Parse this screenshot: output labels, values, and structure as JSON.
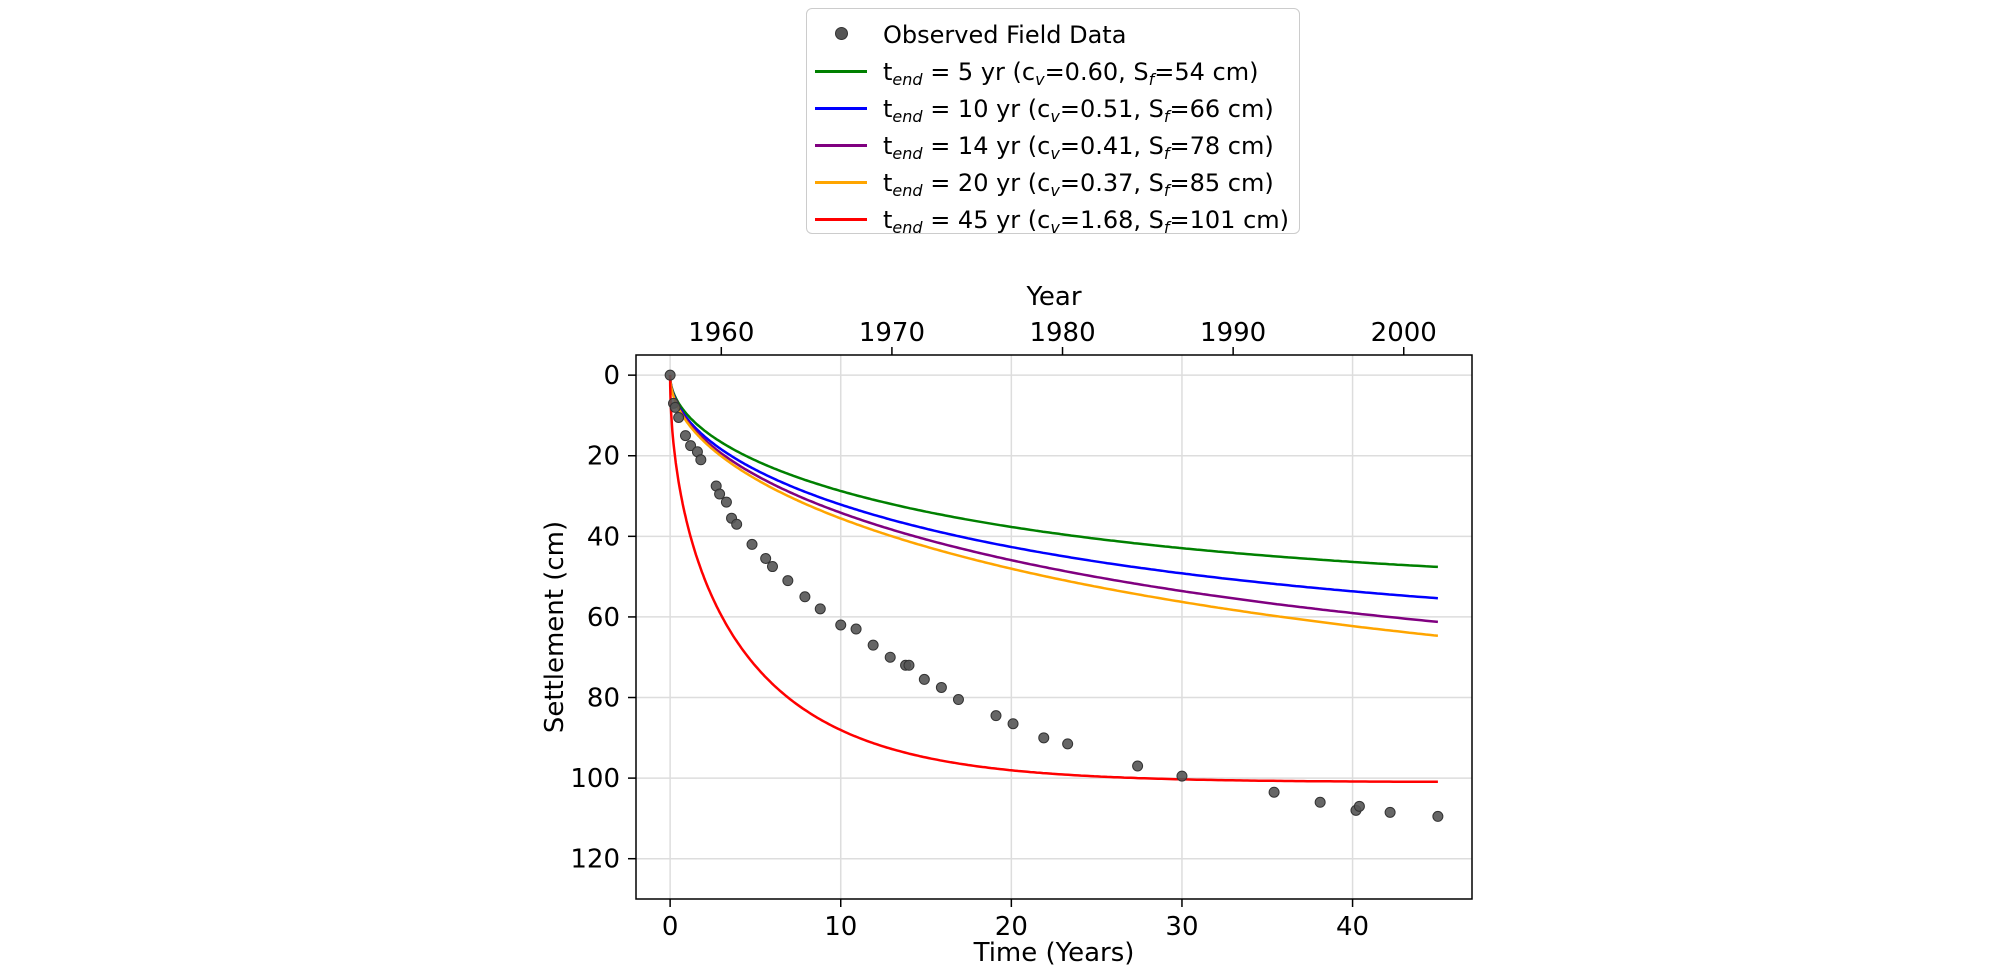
{
  "chart_data": {
    "type": "line",
    "xlabel": "Time (Years)",
    "ylabel": "Settlement (cm)",
    "top_axis_label": "Year",
    "xlim": [
      -2,
      47
    ],
    "ylim": [
      130,
      -5
    ],
    "y_inverted": true,
    "x_ticks": [
      0,
      10,
      20,
      30,
      40
    ],
    "x_tick_labels": [
      "0",
      "10",
      "20",
      "30",
      "40"
    ],
    "y_ticks": [
      0,
      20,
      40,
      60,
      80,
      100,
      120
    ],
    "y_tick_labels": [
      "0",
      "20",
      "40",
      "60",
      "80",
      "100",
      "120"
    ],
    "top_ticks_years": [
      1960,
      1970,
      1980,
      1990,
      2000
    ],
    "top_tick_labels": [
      "1960",
      "1970",
      "1980",
      "1990",
      "2000"
    ],
    "year_offset": 1957,
    "grid": true,
    "legend_position": "top-center",
    "observed": {
      "name": "Observed Field Data",
      "color": "#555555",
      "points": [
        [
          0,
          0
        ],
        [
          0.2,
          7
        ],
        [
          0.3,
          8
        ],
        [
          0.5,
          10.5
        ],
        [
          0.9,
          15
        ],
        [
          1.2,
          17.5
        ],
        [
          1.6,
          19
        ],
        [
          1.8,
          21
        ],
        [
          2.7,
          27.5
        ],
        [
          2.9,
          29.5
        ],
        [
          3.3,
          31.5
        ],
        [
          3.6,
          35.5
        ],
        [
          3.9,
          37
        ],
        [
          4.8,
          42
        ],
        [
          5.6,
          45.5
        ],
        [
          6.0,
          47.5
        ],
        [
          6.9,
          51
        ],
        [
          7.9,
          55
        ],
        [
          8.8,
          58
        ],
        [
          10.0,
          62
        ],
        [
          10.9,
          63
        ],
        [
          11.9,
          67
        ],
        [
          12.9,
          70
        ],
        [
          13.8,
          72
        ],
        [
          14.0,
          72
        ],
        [
          14.9,
          75.5
        ],
        [
          15.9,
          77.5
        ],
        [
          16.9,
          80.5
        ],
        [
          19.1,
          84.5
        ],
        [
          20.1,
          86.5
        ],
        [
          21.9,
          90
        ],
        [
          23.3,
          91.5
        ],
        [
          27.4,
          97
        ],
        [
          30.0,
          99.5
        ],
        [
          35.4,
          103.5
        ],
        [
          38.1,
          106
        ],
        [
          40.2,
          108
        ],
        [
          40.4,
          107
        ],
        [
          42.2,
          108.5
        ],
        [
          45.0,
          109.5
        ]
      ]
    },
    "series": [
      {
        "name_prefix": "t",
        "name_sub": "end",
        "name_mid": " = 5 yr (c",
        "cv_sub": "v",
        "name_mid2": "=0.60, S",
        "sf_sub": "f",
        "name_end": "=54 cm)",
        "color": "#008000",
        "cv": 0.6,
        "sf": 54,
        "tau": 30
      },
      {
        "name_prefix": "t",
        "name_sub": "end",
        "name_mid": " = 10 yr (c",
        "cv_sub": "v",
        "name_mid2": "=0.51, S",
        "sf_sub": "f",
        "name_end": "=66 cm)",
        "color": "#0000ff",
        "cv": 0.51,
        "sf": 66,
        "tau": 37
      },
      {
        "name_prefix": "t",
        "name_sub": "end",
        "name_mid": " = 14 yr (c",
        "cv_sub": "v",
        "name_mid2": "=0.41, S",
        "sf_sub": "f",
        "name_end": "=78 cm)",
        "color": "#800080",
        "cv": 0.41,
        "sf": 78,
        "tau": 47
      },
      {
        "name_prefix": "t",
        "name_sub": "end",
        "name_mid": " = 20 yr (c",
        "cv_sub": "v",
        "name_mid2": "=0.37, S",
        "sf_sub": "f",
        "name_end": "=85 cm)",
        "color": "#ffa500",
        "cv": 0.37,
        "sf": 85,
        "tau": 52
      },
      {
        "name_prefix": "t",
        "name_sub": "end",
        "name_mid": " = 45 yr (c",
        "cv_sub": "v",
        "name_mid2": "=1.68, S",
        "sf_sub": "f",
        "name_end": "=101 cm)",
        "color": "#ff0000",
        "cv": 1.68,
        "sf": 101,
        "tau": 7
      }
    ]
  }
}
